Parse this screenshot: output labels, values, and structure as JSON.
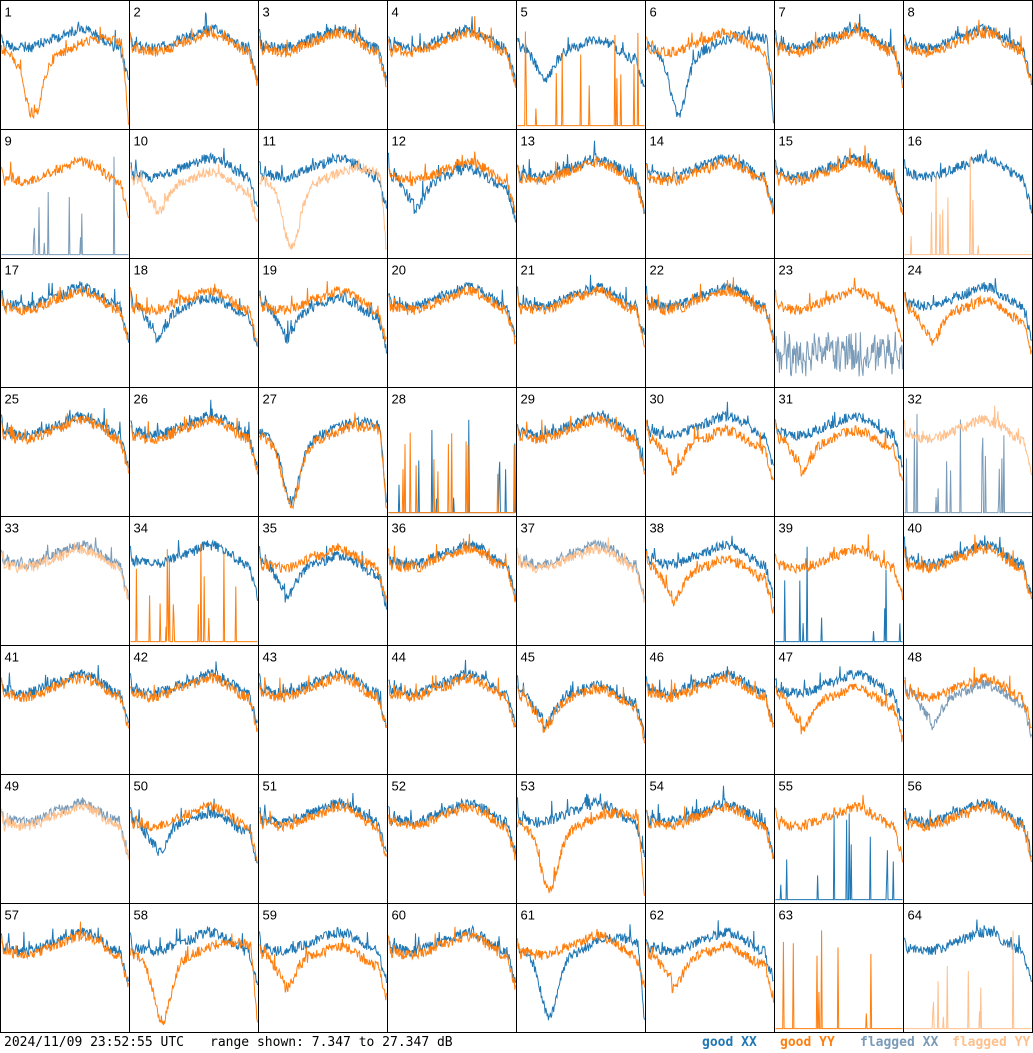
{
  "footer": {
    "timestamp": "2024/11/09 23:52:55 UTC",
    "range_text": "range shown: 7.347 to 27.347 dB"
  },
  "legend": {
    "good_xx": "good XX",
    "good_yy": "good YY",
    "flagged_xx": "flagged XX",
    "flagged_yy": "flagged YY"
  },
  "colors": {
    "good_xx": "#1f77b4",
    "good_yy": "#ff7f0e",
    "flagged_xx": "#7a9bb8",
    "flagged_yy": "#ffc08c",
    "grid": "#000000"
  },
  "chart_data": {
    "type": "line",
    "layout": "8x8 small multiples, one panel per input",
    "ylim_db": [
      7.347,
      27.347
    ],
    "panels": [
      {
        "id": "1",
        "xx_state": "good",
        "xx": "flat",
        "yy_state": "good",
        "yy": "bigdip"
      },
      {
        "id": "2",
        "xx_state": "good",
        "xx": "flat",
        "yy_state": "good",
        "yy": "flat"
      },
      {
        "id": "3",
        "xx_state": "good",
        "xx": "flat",
        "yy_state": "good",
        "yy": "flat"
      },
      {
        "id": "4",
        "xx_state": "good",
        "xx": "flat",
        "yy_state": "good",
        "yy": "flat"
      },
      {
        "id": "5",
        "xx_state": "good",
        "xx": "dip",
        "yy_state": "good",
        "yy": "spikes"
      },
      {
        "id": "6",
        "xx_state": "good",
        "xx": "bigdip",
        "yy_state": "good",
        "yy": "flat"
      },
      {
        "id": "7",
        "xx_state": "good",
        "xx": "flat",
        "yy_state": "good",
        "yy": "flat"
      },
      {
        "id": "8",
        "xx_state": "good",
        "xx": "flat",
        "yy_state": "good",
        "yy": "flat"
      },
      {
        "id": "9",
        "xx_state": "flagged",
        "xx": "spikes",
        "yy_state": "good",
        "yy": "flat"
      },
      {
        "id": "10",
        "xx_state": "good",
        "xx": "flat",
        "yy_state": "flagged",
        "yy": "dip"
      },
      {
        "id": "11",
        "xx_state": "good",
        "xx": "flat",
        "yy_state": "flagged",
        "yy": "bigdip"
      },
      {
        "id": "12",
        "xx_state": "good",
        "xx": "dip",
        "yy_state": "good",
        "yy": "flat"
      },
      {
        "id": "13",
        "xx_state": "good",
        "xx": "flat",
        "yy_state": "good",
        "yy": "flat"
      },
      {
        "id": "14",
        "xx_state": "good",
        "xx": "flat",
        "yy_state": "good",
        "yy": "flat"
      },
      {
        "id": "15",
        "xx_state": "good",
        "xx": "flat",
        "yy_state": "good",
        "yy": "flat"
      },
      {
        "id": "16",
        "xx_state": "good",
        "xx": "flat",
        "yy_state": "flagged",
        "yy": "spikes"
      },
      {
        "id": "17",
        "xx_state": "good",
        "xx": "flat",
        "yy_state": "good",
        "yy": "flat"
      },
      {
        "id": "18",
        "xx_state": "good",
        "xx": "dip",
        "yy_state": "good",
        "yy": "flat"
      },
      {
        "id": "19",
        "xx_state": "good",
        "xx": "dip",
        "yy_state": "good",
        "yy": "flat"
      },
      {
        "id": "20",
        "xx_state": "good",
        "xx": "flat",
        "yy_state": "good",
        "yy": "flat"
      },
      {
        "id": "21",
        "xx_state": "good",
        "xx": "flat",
        "yy_state": "good",
        "yy": "flat"
      },
      {
        "id": "22",
        "xx_state": "good",
        "xx": "flat",
        "yy_state": "good",
        "yy": "flat"
      },
      {
        "id": "23",
        "xx_state": "flagged",
        "xx": "noisy",
        "yy_state": "good",
        "yy": "flat"
      },
      {
        "id": "24",
        "xx_state": "good",
        "xx": "flat",
        "yy_state": "good",
        "yy": "dip"
      },
      {
        "id": "25",
        "xx_state": "good",
        "xx": "flat",
        "yy_state": "good",
        "yy": "flat"
      },
      {
        "id": "26",
        "xx_state": "good",
        "xx": "flat",
        "yy_state": "good",
        "yy": "flat"
      },
      {
        "id": "27",
        "xx_state": "good",
        "xx": "bigdip",
        "yy_state": "good",
        "yy": "bigdip"
      },
      {
        "id": "28",
        "xx_state": "good",
        "xx": "spikes",
        "yy_state": "good",
        "yy": "spikes"
      },
      {
        "id": "29",
        "xx_state": "good",
        "xx": "flat",
        "yy_state": "good",
        "yy": "flat"
      },
      {
        "id": "30",
        "xx_state": "good",
        "xx": "flat",
        "yy_state": "good",
        "yy": "dip"
      },
      {
        "id": "31",
        "xx_state": "good",
        "xx": "flat",
        "yy_state": "good",
        "yy": "dip"
      },
      {
        "id": "32",
        "xx_state": "flagged",
        "xx": "spikes",
        "yy_state": "flagged",
        "yy": "flat"
      },
      {
        "id": "33",
        "xx_state": "flagged",
        "xx": "flat",
        "yy_state": "flagged",
        "yy": "flat"
      },
      {
        "id": "34",
        "xx_state": "good",
        "xx": "flat",
        "yy_state": "good",
        "yy": "spikes"
      },
      {
        "id": "35",
        "xx_state": "good",
        "xx": "dip",
        "yy_state": "good",
        "yy": "flat"
      },
      {
        "id": "36",
        "xx_state": "good",
        "xx": "flat",
        "yy_state": "good",
        "yy": "flat"
      },
      {
        "id": "37",
        "xx_state": "flagged",
        "xx": "flat",
        "yy_state": "flagged",
        "yy": "flat"
      },
      {
        "id": "38",
        "xx_state": "good",
        "xx": "flat",
        "yy_state": "good",
        "yy": "dip"
      },
      {
        "id": "39",
        "xx_state": "good",
        "xx": "spikes",
        "yy_state": "good",
        "yy": "flat"
      },
      {
        "id": "40",
        "xx_state": "good",
        "xx": "flat",
        "yy_state": "good",
        "yy": "flat"
      },
      {
        "id": "41",
        "xx_state": "good",
        "xx": "flat",
        "yy_state": "good",
        "yy": "flat"
      },
      {
        "id": "42",
        "xx_state": "good",
        "xx": "flat",
        "yy_state": "good",
        "yy": "flat"
      },
      {
        "id": "43",
        "xx_state": "good",
        "xx": "flat",
        "yy_state": "good",
        "yy": "flat"
      },
      {
        "id": "44",
        "xx_state": "good",
        "xx": "flat",
        "yy_state": "good",
        "yy": "flat"
      },
      {
        "id": "45",
        "xx_state": "good",
        "xx": "dip",
        "yy_state": "good",
        "yy": "dip"
      },
      {
        "id": "46",
        "xx_state": "good",
        "xx": "flat",
        "yy_state": "good",
        "yy": "flat"
      },
      {
        "id": "47",
        "xx_state": "good",
        "xx": "flat",
        "yy_state": "good",
        "yy": "dip"
      },
      {
        "id": "48",
        "xx_state": "flagged",
        "xx": "dip",
        "yy_state": "good",
        "yy": "flat"
      },
      {
        "id": "49",
        "xx_state": "flagged",
        "xx": "flat",
        "yy_state": "flagged",
        "yy": "flat"
      },
      {
        "id": "50",
        "xx_state": "good",
        "xx": "dip",
        "yy_state": "good",
        "yy": "flat"
      },
      {
        "id": "51",
        "xx_state": "good",
        "xx": "flat",
        "yy_state": "good",
        "yy": "flat"
      },
      {
        "id": "52",
        "xx_state": "good",
        "xx": "flat",
        "yy_state": "good",
        "yy": "flat"
      },
      {
        "id": "53",
        "xx_state": "good",
        "xx": "flat",
        "yy_state": "good",
        "yy": "bigdip"
      },
      {
        "id": "54",
        "xx_state": "good",
        "xx": "flat",
        "yy_state": "good",
        "yy": "flat"
      },
      {
        "id": "55",
        "xx_state": "good",
        "xx": "spikes",
        "yy_state": "good",
        "yy": "flat"
      },
      {
        "id": "56",
        "xx_state": "good",
        "xx": "flat",
        "yy_state": "good",
        "yy": "flat"
      },
      {
        "id": "57",
        "xx_state": "good",
        "xx": "flat",
        "yy_state": "good",
        "yy": "flat"
      },
      {
        "id": "58",
        "xx_state": "good",
        "xx": "flat",
        "yy_state": "good",
        "yy": "bigdip"
      },
      {
        "id": "59",
        "xx_state": "good",
        "xx": "flat",
        "yy_state": "good",
        "yy": "dip"
      },
      {
        "id": "60",
        "xx_state": "good",
        "xx": "flat",
        "yy_state": "good",
        "yy": "flat"
      },
      {
        "id": "61",
        "xx_state": "good",
        "xx": "bigdip",
        "yy_state": "good",
        "yy": "flat"
      },
      {
        "id": "62",
        "xx_state": "good",
        "xx": "flat",
        "yy_state": "good",
        "yy": "dip"
      },
      {
        "id": "63",
        "xx_state": "good",
        "xx": "none",
        "yy_state": "good",
        "yy": "spikes"
      },
      {
        "id": "64",
        "xx_state": "good",
        "xx": "flat",
        "yy_state": "flagged",
        "yy": "spikes"
      }
    ]
  }
}
